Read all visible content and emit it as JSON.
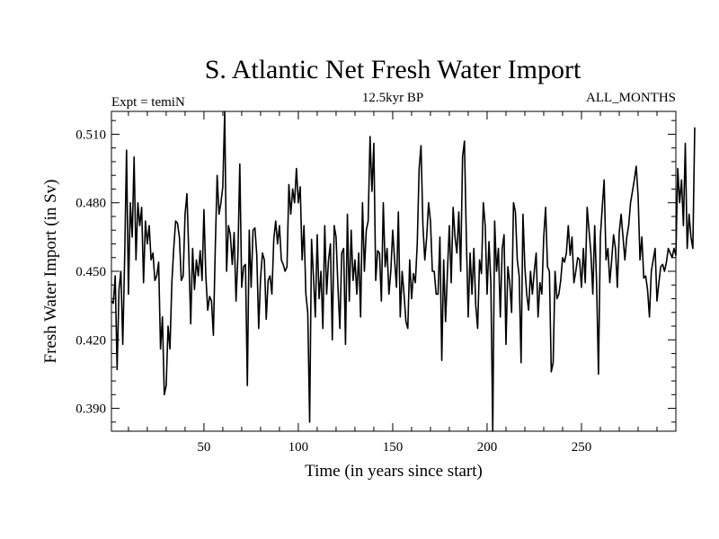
{
  "chart_data": {
    "type": "line",
    "title": "S. Atlantic Net Fresh Water Import",
    "subtitle": "12.5kyr BP",
    "left_label": "Expt = temiN",
    "right_label": "ALL_MONTHS",
    "xlabel": "Time (in years since start)",
    "ylabel": "Fresh Water Import (in Sv)",
    "xlim": [
      1,
      300
    ],
    "ylim": [
      0.38,
      0.52
    ],
    "x_ticks": [
      {
        "value": 50,
        "label": "50"
      },
      {
        "value": 100,
        "label": "100"
      },
      {
        "value": 150,
        "label": "150"
      },
      {
        "value": 200,
        "label": "200"
      },
      {
        "value": 250,
        "label": "250"
      }
    ],
    "y_ticks": [
      {
        "value": 0.39,
        "label": "0.390"
      },
      {
        "value": 0.42,
        "label": "0.420"
      },
      {
        "value": 0.45,
        "label": "0.450"
      },
      {
        "value": 0.48,
        "label": "0.480"
      },
      {
        "value": 0.51,
        "label": "0.510"
      }
    ],
    "series": [
      {
        "name": "Fresh Water Import",
        "x_start": 1,
        "x_step": 1,
        "values": [
          0.437,
          0.436,
          0.448,
          0.407,
          0.442,
          0.45,
          0.418,
          0.456,
          0.503,
          0.44,
          0.48,
          0.465,
          0.5,
          0.455,
          0.48,
          0.47,
          0.478,
          0.445,
          0.472,
          0.462,
          0.47,
          0.455,
          0.458,
          0.446,
          0.448,
          0.454,
          0.416,
          0.43,
          0.396,
          0.4,
          0.426,
          0.416,
          0.445,
          0.46,
          0.472,
          0.471,
          0.465,
          0.446,
          0.448,
          0.475,
          0.484,
          0.457,
          0.427,
          0.46,
          0.442,
          0.455,
          0.448,
          0.459,
          0.446,
          0.477,
          0.448,
          0.433,
          0.439,
          0.437,
          0.422,
          0.46,
          0.492,
          0.475,
          0.48,
          0.487,
          0.52,
          0.45,
          0.47,
          0.466,
          0.453,
          0.467,
          0.437,
          0.457,
          0.497,
          0.443,
          0.452,
          0.453,
          0.4,
          0.468,
          0.443,
          0.468,
          0.469,
          0.457,
          0.425,
          0.447,
          0.458,
          0.455,
          0.429,
          0.446,
          0.448,
          0.44,
          0.464,
          0.472,
          0.462,
          0.47,
          0.455,
          0.453,
          0.45,
          0.452,
          0.488,
          0.475,
          0.486,
          0.48,
          0.495,
          0.48,
          0.487,
          0.455,
          0.47,
          0.44,
          0.432,
          0.384,
          0.464,
          0.448,
          0.43,
          0.466,
          0.438,
          0.45,
          0.425,
          0.47,
          0.44,
          0.455,
          0.462,
          0.42,
          0.47,
          0.465,
          0.443,
          0.425,
          0.458,
          0.46,
          0.418,
          0.475,
          0.437,
          0.468,
          0.446,
          0.455,
          0.44,
          0.458,
          0.43,
          0.48,
          0.45,
          0.468,
          0.472,
          0.509,
          0.485,
          0.506,
          0.446,
          0.459,
          0.458,
          0.437,
          0.48,
          0.452,
          0.46,
          0.44,
          0.45,
          0.468,
          0.455,
          0.443,
          0.476,
          0.43,
          0.45,
          0.44,
          0.428,
          0.425,
          0.455,
          0.438,
          0.449,
          0.445,
          0.462,
          0.495,
          0.505,
          0.47,
          0.455,
          0.465,
          0.48,
          0.472,
          0.45,
          0.45,
          0.44,
          0.44,
          0.465,
          0.411,
          0.455,
          0.428,
          0.45,
          0.47,
          0.445,
          0.478,
          0.465,
          0.458,
          0.476,
          0.45,
          0.5,
          0.507,
          0.465,
          0.43,
          0.458,
          0.44,
          0.46,
          0.435,
          0.425,
          0.455,
          0.449,
          0.48,
          0.47,
          0.44,
          0.463,
          0.445,
          0.38,
          0.472,
          0.45,
          0.46,
          0.43,
          0.46,
          0.466,
          0.418,
          0.452,
          0.445,
          0.432,
          0.48,
          0.476,
          0.455,
          0.448,
          0.41,
          0.475,
          0.452,
          0.44,
          0.433,
          0.45,
          0.44,
          0.45,
          0.458,
          0.43,
          0.445,
          0.44,
          0.465,
          0.478,
          0.452,
          0.45,
          0.406,
          0.41,
          0.45,
          0.438,
          0.44,
          0.446,
          0.456,
          0.454,
          0.458,
          0.47,
          0.457,
          0.465,
          0.445,
          0.45,
          0.456,
          0.455,
          0.443,
          0.46,
          0.445,
          0.478,
          0.468,
          0.458,
          0.44,
          0.47,
          0.445,
          0.405,
          0.465,
          0.478,
          0.49,
          0.455,
          0.46,
          0.445,
          0.455,
          0.466,
          0.46,
          0.443,
          0.467,
          0.475,
          0.465,
          0.455,
          0.465,
          0.47,
          0.48,
          0.485,
          0.49,
          0.496,
          0.483,
          0.455,
          0.465,
          0.447,
          0.448,
          0.442,
          0.43,
          0.45,
          0.455,
          0.46,
          0.437,
          0.445,
          0.452,
          0.453,
          0.45,
          0.454,
          0.46,
          0.458,
          0.456,
          0.46,
          0.457,
          0.495,
          0.48,
          0.49,
          0.47,
          0.506,
          0.46,
          0.475,
          0.465,
          0.46,
          0.513
        ]
      }
    ]
  }
}
